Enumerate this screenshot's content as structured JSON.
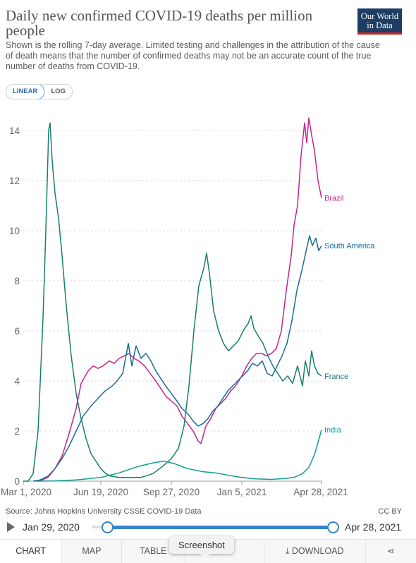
{
  "header": {
    "title": "Daily new confirmed COVID-19 deaths per million people",
    "subtitle": "Shown is the rolling 7-day average. Limited testing and challenges in the attribution of the cause of death means that the number of confirmed deaths may not be an accurate count of the true number of deaths from COVID-19.",
    "logo_line1": "Our World",
    "logo_line2": "in Data",
    "logo_color": "#1d3d63",
    "logo_accent": "#ce261e"
  },
  "controls": {
    "linear_label": "LINEAR",
    "log_label": "LOG",
    "selected": "LINEAR"
  },
  "chart_data": {
    "type": "line",
    "title": "Daily new confirmed COVID-19 deaths per million people",
    "xlabel": "",
    "ylabel": "",
    "x_tick_labels": [
      "Mar 1, 2020",
      "Jun 19, 2020",
      "Sep 27, 2020",
      "Jan 5, 2021",
      "Apr 28, 2021"
    ],
    "x_tick_dates": [
      "2020-03-01",
      "2020-06-19",
      "2020-09-27",
      "2021-01-05",
      "2021-04-28"
    ],
    "y_ticks": [
      0,
      2,
      4,
      6,
      8,
      10,
      12,
      14
    ],
    "ylim": [
      0,
      14.7
    ],
    "xlim": [
      "2020-03-01",
      "2021-04-28"
    ],
    "grid": "horizontal dashed",
    "legend": "inline labels at right end of lines",
    "series": [
      {
        "name": "Brazil",
        "color": "#c2258f",
        "points": [
          [
            "2020-03-18",
            0.0
          ],
          [
            "2020-03-28",
            0.05
          ],
          [
            "2020-04-05",
            0.15
          ],
          [
            "2020-04-15",
            0.5
          ],
          [
            "2020-04-25",
            1.0
          ],
          [
            "2020-05-05",
            1.9
          ],
          [
            "2020-05-15",
            2.9
          ],
          [
            "2020-05-22",
            3.9
          ],
          [
            "2020-06-01",
            4.4
          ],
          [
            "2020-06-08",
            4.6
          ],
          [
            "2020-06-15",
            4.5
          ],
          [
            "2020-06-22",
            4.6
          ],
          [
            "2020-07-01",
            4.8
          ],
          [
            "2020-07-08",
            4.7
          ],
          [
            "2020-07-15",
            4.9
          ],
          [
            "2020-07-22",
            5.0
          ],
          [
            "2020-07-29",
            5.1
          ],
          [
            "2020-08-05",
            4.9
          ],
          [
            "2020-08-12",
            4.8
          ],
          [
            "2020-08-20",
            4.6
          ],
          [
            "2020-08-28",
            4.3
          ],
          [
            "2020-09-05",
            4.0
          ],
          [
            "2020-09-12",
            3.7
          ],
          [
            "2020-09-19",
            3.4
          ],
          [
            "2020-09-27",
            3.2
          ],
          [
            "2020-10-05",
            3.0
          ],
          [
            "2020-10-12",
            2.6
          ],
          [
            "2020-10-20",
            2.3
          ],
          [
            "2020-10-28",
            2.0
          ],
          [
            "2020-11-04",
            1.6
          ],
          [
            "2020-11-08",
            1.5
          ],
          [
            "2020-11-15",
            2.2
          ],
          [
            "2020-11-22",
            2.5
          ],
          [
            "2020-11-29",
            2.9
          ],
          [
            "2020-12-06",
            3.1
          ],
          [
            "2020-12-13",
            3.3
          ],
          [
            "2020-12-20",
            3.6
          ],
          [
            "2020-12-27",
            3.8
          ],
          [
            "2021-01-05",
            4.2
          ],
          [
            "2021-01-12",
            4.6
          ],
          [
            "2021-01-19",
            4.9
          ],
          [
            "2021-01-26",
            5.1
          ],
          [
            "2021-02-02",
            5.1
          ],
          [
            "2021-02-09",
            5.0
          ],
          [
            "2021-02-16",
            5.1
          ],
          [
            "2021-02-23",
            5.3
          ],
          [
            "2021-03-02",
            6.0
          ],
          [
            "2021-03-09",
            7.6
          ],
          [
            "2021-03-16",
            9.0
          ],
          [
            "2021-03-20",
            10.2
          ],
          [
            "2021-03-25",
            11.0
          ],
          [
            "2021-03-30",
            13.0
          ],
          [
            "2021-04-04",
            14.3
          ],
          [
            "2021-04-07",
            13.5
          ],
          [
            "2021-04-10",
            14.5
          ],
          [
            "2021-04-14",
            13.8
          ],
          [
            "2021-04-18",
            13.2
          ],
          [
            "2021-04-23",
            12.0
          ],
          [
            "2021-04-28",
            11.3
          ]
        ]
      },
      {
        "name": "South America",
        "color": "#1b6b93",
        "points": [
          [
            "2020-03-15",
            0.0
          ],
          [
            "2020-03-25",
            0.05
          ],
          [
            "2020-04-05",
            0.2
          ],
          [
            "2020-04-15",
            0.5
          ],
          [
            "2020-04-25",
            0.9
          ],
          [
            "2020-05-05",
            1.4
          ],
          [
            "2020-05-15",
            2.0
          ],
          [
            "2020-05-25",
            2.6
          ],
          [
            "2020-06-05",
            3.0
          ],
          [
            "2020-06-15",
            3.3
          ],
          [
            "2020-06-25",
            3.6
          ],
          [
            "2020-07-05",
            3.8
          ],
          [
            "2020-07-12",
            4.0
          ],
          [
            "2020-07-20",
            4.3
          ],
          [
            "2020-07-28",
            5.5
          ],
          [
            "2020-08-02",
            4.6
          ],
          [
            "2020-08-08",
            5.4
          ],
          [
            "2020-08-15",
            4.9
          ],
          [
            "2020-08-22",
            5.1
          ],
          [
            "2020-08-29",
            4.8
          ],
          [
            "2020-09-05",
            4.4
          ],
          [
            "2020-09-12",
            4.1
          ],
          [
            "2020-09-19",
            3.8
          ],
          [
            "2020-09-27",
            3.5
          ],
          [
            "2020-10-05",
            3.2
          ],
          [
            "2020-10-12",
            2.9
          ],
          [
            "2020-10-20",
            2.7
          ],
          [
            "2020-10-28",
            2.4
          ],
          [
            "2020-11-04",
            2.2
          ],
          [
            "2020-11-11",
            2.3
          ],
          [
            "2020-11-18",
            2.5
          ],
          [
            "2020-11-25",
            2.8
          ],
          [
            "2020-12-02",
            3.0
          ],
          [
            "2020-12-09",
            3.3
          ],
          [
            "2020-12-16",
            3.6
          ],
          [
            "2020-12-23",
            3.8
          ],
          [
            "2020-12-30",
            4.0
          ],
          [
            "2021-01-06",
            4.2
          ],
          [
            "2021-01-13",
            4.4
          ],
          [
            "2021-01-20",
            4.7
          ],
          [
            "2021-01-27",
            4.6
          ],
          [
            "2021-02-03",
            4.8
          ],
          [
            "2021-02-10",
            4.3
          ],
          [
            "2021-02-17",
            4.2
          ],
          [
            "2021-02-24",
            4.6
          ],
          [
            "2021-03-03",
            5.0
          ],
          [
            "2021-03-10",
            5.5
          ],
          [
            "2021-03-17",
            6.4
          ],
          [
            "2021-03-24",
            7.6
          ],
          [
            "2021-03-31",
            8.4
          ],
          [
            "2021-04-07",
            9.3
          ],
          [
            "2021-04-11",
            9.8
          ],
          [
            "2021-04-15",
            9.4
          ],
          [
            "2021-04-20",
            9.7
          ],
          [
            "2021-04-24",
            9.2
          ],
          [
            "2021-04-28",
            9.4
          ]
        ]
      },
      {
        "name": "France",
        "color": "#177e6d",
        "points": [
          [
            "2020-03-01",
            0.0
          ],
          [
            "2020-03-08",
            0.0
          ],
          [
            "2020-03-15",
            0.3
          ],
          [
            "2020-03-22",
            2.0
          ],
          [
            "2020-03-29",
            6.5
          ],
          [
            "2020-04-02",
            10.0
          ],
          [
            "2020-04-06",
            14.0
          ],
          [
            "2020-04-08",
            14.3
          ],
          [
            "2020-04-11",
            12.8
          ],
          [
            "2020-04-15",
            11.5
          ],
          [
            "2020-04-20",
            10.5
          ],
          [
            "2020-04-25",
            9.0
          ],
          [
            "2020-05-01",
            7.0
          ],
          [
            "2020-05-08",
            5.0
          ],
          [
            "2020-05-15",
            3.5
          ],
          [
            "2020-05-22",
            2.5
          ],
          [
            "2020-05-29",
            1.7
          ],
          [
            "2020-06-05",
            1.1
          ],
          [
            "2020-06-12",
            0.8
          ],
          [
            "2020-06-19",
            0.5
          ],
          [
            "2020-06-26",
            0.3
          ],
          [
            "2020-07-03",
            0.2
          ],
          [
            "2020-07-15",
            0.15
          ],
          [
            "2020-08-01",
            0.15
          ],
          [
            "2020-08-15",
            0.15
          ],
          [
            "2020-09-01",
            0.3
          ],
          [
            "2020-09-15",
            0.6
          ],
          [
            "2020-09-27",
            0.9
          ],
          [
            "2020-10-07",
            1.3
          ],
          [
            "2020-10-15",
            2.2
          ],
          [
            "2020-10-22",
            3.8
          ],
          [
            "2020-10-29",
            6.0
          ],
          [
            "2020-11-05",
            7.8
          ],
          [
            "2020-11-12",
            8.5
          ],
          [
            "2020-11-16",
            9.1
          ],
          [
            "2020-11-20",
            8.3
          ],
          [
            "2020-11-26",
            6.8
          ],
          [
            "2020-12-03",
            6.0
          ],
          [
            "2020-12-10",
            5.5
          ],
          [
            "2020-12-17",
            5.2
          ],
          [
            "2020-12-24",
            5.4
          ],
          [
            "2020-12-31",
            5.6
          ],
          [
            "2021-01-07",
            6.0
          ],
          [
            "2021-01-14",
            6.3
          ],
          [
            "2021-01-18",
            6.6
          ],
          [
            "2021-01-22",
            6.1
          ],
          [
            "2021-01-28",
            5.8
          ],
          [
            "2021-02-04",
            5.5
          ],
          [
            "2021-02-11",
            5.0
          ],
          [
            "2021-02-18",
            4.6
          ],
          [
            "2021-02-25",
            4.3
          ],
          [
            "2021-03-04",
            4.0
          ],
          [
            "2021-03-11",
            4.2
          ],
          [
            "2021-03-18",
            3.9
          ],
          [
            "2021-03-25",
            4.6
          ],
          [
            "2021-04-01",
            3.8
          ],
          [
            "2021-04-05",
            4.8
          ],
          [
            "2021-04-10",
            4.2
          ],
          [
            "2021-04-14",
            5.2
          ],
          [
            "2021-04-18",
            4.6
          ],
          [
            "2021-04-23",
            4.3
          ],
          [
            "2021-04-28",
            4.2
          ]
        ]
      },
      {
        "name": "India",
        "color": "#0f9d8f",
        "points": [
          [
            "2020-03-20",
            0.0
          ],
          [
            "2020-04-15",
            0.01
          ],
          [
            "2020-05-15",
            0.05
          ],
          [
            "2020-06-19",
            0.15
          ],
          [
            "2020-07-15",
            0.33
          ],
          [
            "2020-08-10",
            0.58
          ],
          [
            "2020-09-01",
            0.73
          ],
          [
            "2020-09-17",
            0.8
          ],
          [
            "2020-10-01",
            0.7
          ],
          [
            "2020-10-20",
            0.5
          ],
          [
            "2020-11-10",
            0.38
          ],
          [
            "2020-12-01",
            0.32
          ],
          [
            "2020-12-20",
            0.22
          ],
          [
            "2021-01-05",
            0.15
          ],
          [
            "2021-01-25",
            0.09
          ],
          [
            "2021-02-15",
            0.07
          ],
          [
            "2021-03-05",
            0.1
          ],
          [
            "2021-03-20",
            0.15
          ],
          [
            "2021-04-01",
            0.3
          ],
          [
            "2021-04-10",
            0.55
          ],
          [
            "2021-04-18",
            1.05
          ],
          [
            "2021-04-23",
            1.55
          ],
          [
            "2021-04-28",
            2.05
          ]
        ]
      }
    ]
  },
  "footer": {
    "source": "Source: Johns Hopkins University CSSE COVID-19 Data",
    "license": "CC BY",
    "timeline_start": "Jan 29, 2020",
    "timeline_end": "Apr 28, 2021"
  },
  "tabs": [
    {
      "label": "CHART"
    },
    {
      "label": "MAP"
    },
    {
      "label": "TABLE"
    },
    {
      "label": "S"
    },
    {
      "label": "⤓ DOWNLOAD"
    },
    {
      "label": "⋖"
    }
  ],
  "tooltip": {
    "label": "Screenshot"
  }
}
